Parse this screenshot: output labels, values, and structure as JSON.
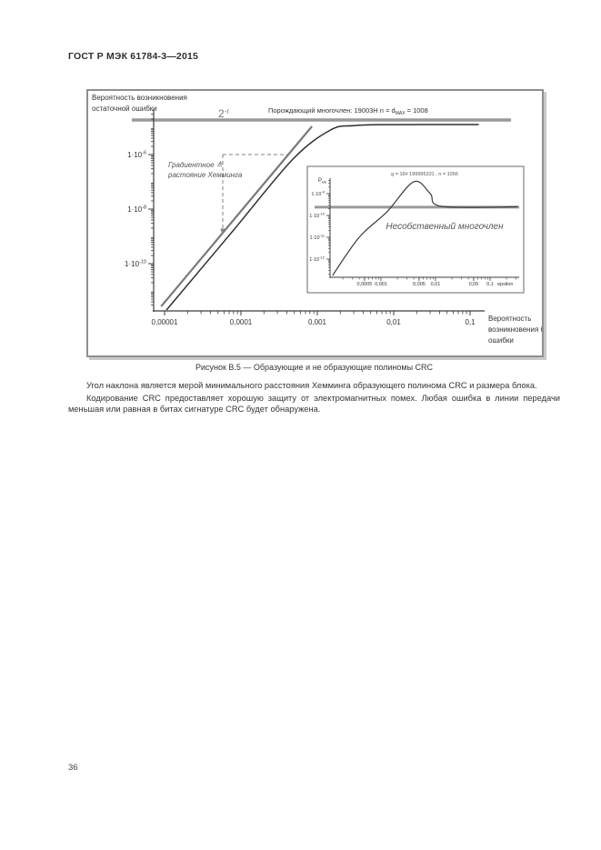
{
  "doc": {
    "header": "ГОСТ Р МЭК 61784-3—2015",
    "caption": "Рисунок В.5 — Образующие и не образующие полиномы CRC",
    "paragraphs": [
      "Угол наклона является мерой минимального расстояния Хемминга образующего полинома CRC и размера блока.",
      "Кодирование CRC предоставляет хорошую защиту от электромагнитных помех. Любая ошибка в линии передачи меньшая или равная в битах сигнатуре CRC будет обнаружена."
    ],
    "page_number": "36"
  },
  "colors": {
    "curve": "#2f2f2f",
    "tangent": "#7a7a7a",
    "asymptote": "#9a9a9a",
    "axis": "#3c3c3c",
    "dashed": "#808080",
    "text": "#333333",
    "muted_text": "#555555",
    "frame": "#8f8f8f"
  },
  "chart_data": [
    {
      "id": "main-plot",
      "type": "line",
      "title_parts": {
        "pre": "Порождающий многочлен: 19003H n = d",
        "sub": "MAX",
        "post": " = 1008"
      },
      "x_axis": {
        "scale": "log",
        "range": [
          1e-05,
          0.15
        ],
        "tick_labels": [
          "0,00001",
          "0,0001",
          "0,001",
          "0,01",
          "0,1"
        ],
        "tick_values": [
          1e-05,
          0.0001,
          0.001,
          0.01,
          0.1
        ],
        "title_lines": [
          "Вероятность",
          "возникновения битовой",
          "ошибки"
        ]
      },
      "y_axis": {
        "scale": "log",
        "range": [
          1e-12,
          0.0001
        ],
        "mantissa": "1·10",
        "tick_exponents": [
          "-6",
          "-8",
          "-10"
        ],
        "tick_values": [
          1e-06,
          1e-08,
          1e-10
        ],
        "title_lines": [
          "Вероятность возникновения",
          "остаточной ошибки"
        ]
      },
      "asymptote": {
        "value": 1.85e-05,
        "label_base": "2",
        "label_exponent": "-r"
      },
      "series": [
        {
          "name": "generating-polynomial-curve",
          "points": [
            [
              1.06e-05,
              2e-12
            ],
            [
              8e-05,
              1.7e-09
            ],
            [
              0.00048,
              6.8e-07
            ],
            [
              0.0015,
              8e-06
            ],
            [
              0.003,
              1.15e-05
            ],
            [
              0.008,
              1.25e-05
            ],
            [
              0.13,
              1.26e-05
            ]
          ]
        },
        {
          "name": "hamming-gradient-tangent",
          "points": [
            [
              9e-06,
              2.7e-12
            ],
            [
              0.00085,
              1.08e-05
            ]
          ]
        }
      ],
      "annotation_lines": [
        "Градиентное ≙",
        "растояние Хемминга"
      ],
      "grid": false,
      "legend": "none"
    },
    {
      "id": "inset-plot",
      "type": "line",
      "title": "g = 16# 199995331 , n = 1056",
      "x_axis": {
        "scale": "log",
        "range": [
          0.00012,
          0.35
        ],
        "tick_labels": [
          "0,0005",
          "0,001",
          "0,005",
          "0,01",
          "0,05",
          "0,1"
        ],
        "tick_values": [
          0.0005,
          0.001,
          0.005,
          0.01,
          0.05,
          0.1
        ],
        "var_label": "epsilon"
      },
      "y_axis": {
        "scale": "log",
        "range": [
          1e-13,
          1e-08
        ],
        "mantissa": "1·10",
        "tick_exponents": [
          "-9",
          "-10",
          "-11",
          "-12"
        ],
        "tick_values": [
          1e-09,
          1e-10,
          1e-11,
          1e-12
        ],
        "var_label_base": "P",
        "var_label_sub": "ue"
      },
      "asymptote": {
        "value": 2.4e-10
      },
      "series": [
        {
          "name": "improper-polynomial-curve",
          "points": [
            [
              0.00013,
              1.8e-13
            ],
            [
              0.0004,
              1e-11
            ],
            [
              0.0013,
              1.5e-10
            ],
            [
              0.004,
              3.5e-09
            ],
            [
              0.008,
              1e-09
            ],
            [
              0.013,
              2.6e-10
            ],
            [
              0.32,
              2.5e-10
            ]
          ]
        }
      ],
      "label": "Несобственный многочлен",
      "grid": false,
      "legend": "none"
    }
  ]
}
